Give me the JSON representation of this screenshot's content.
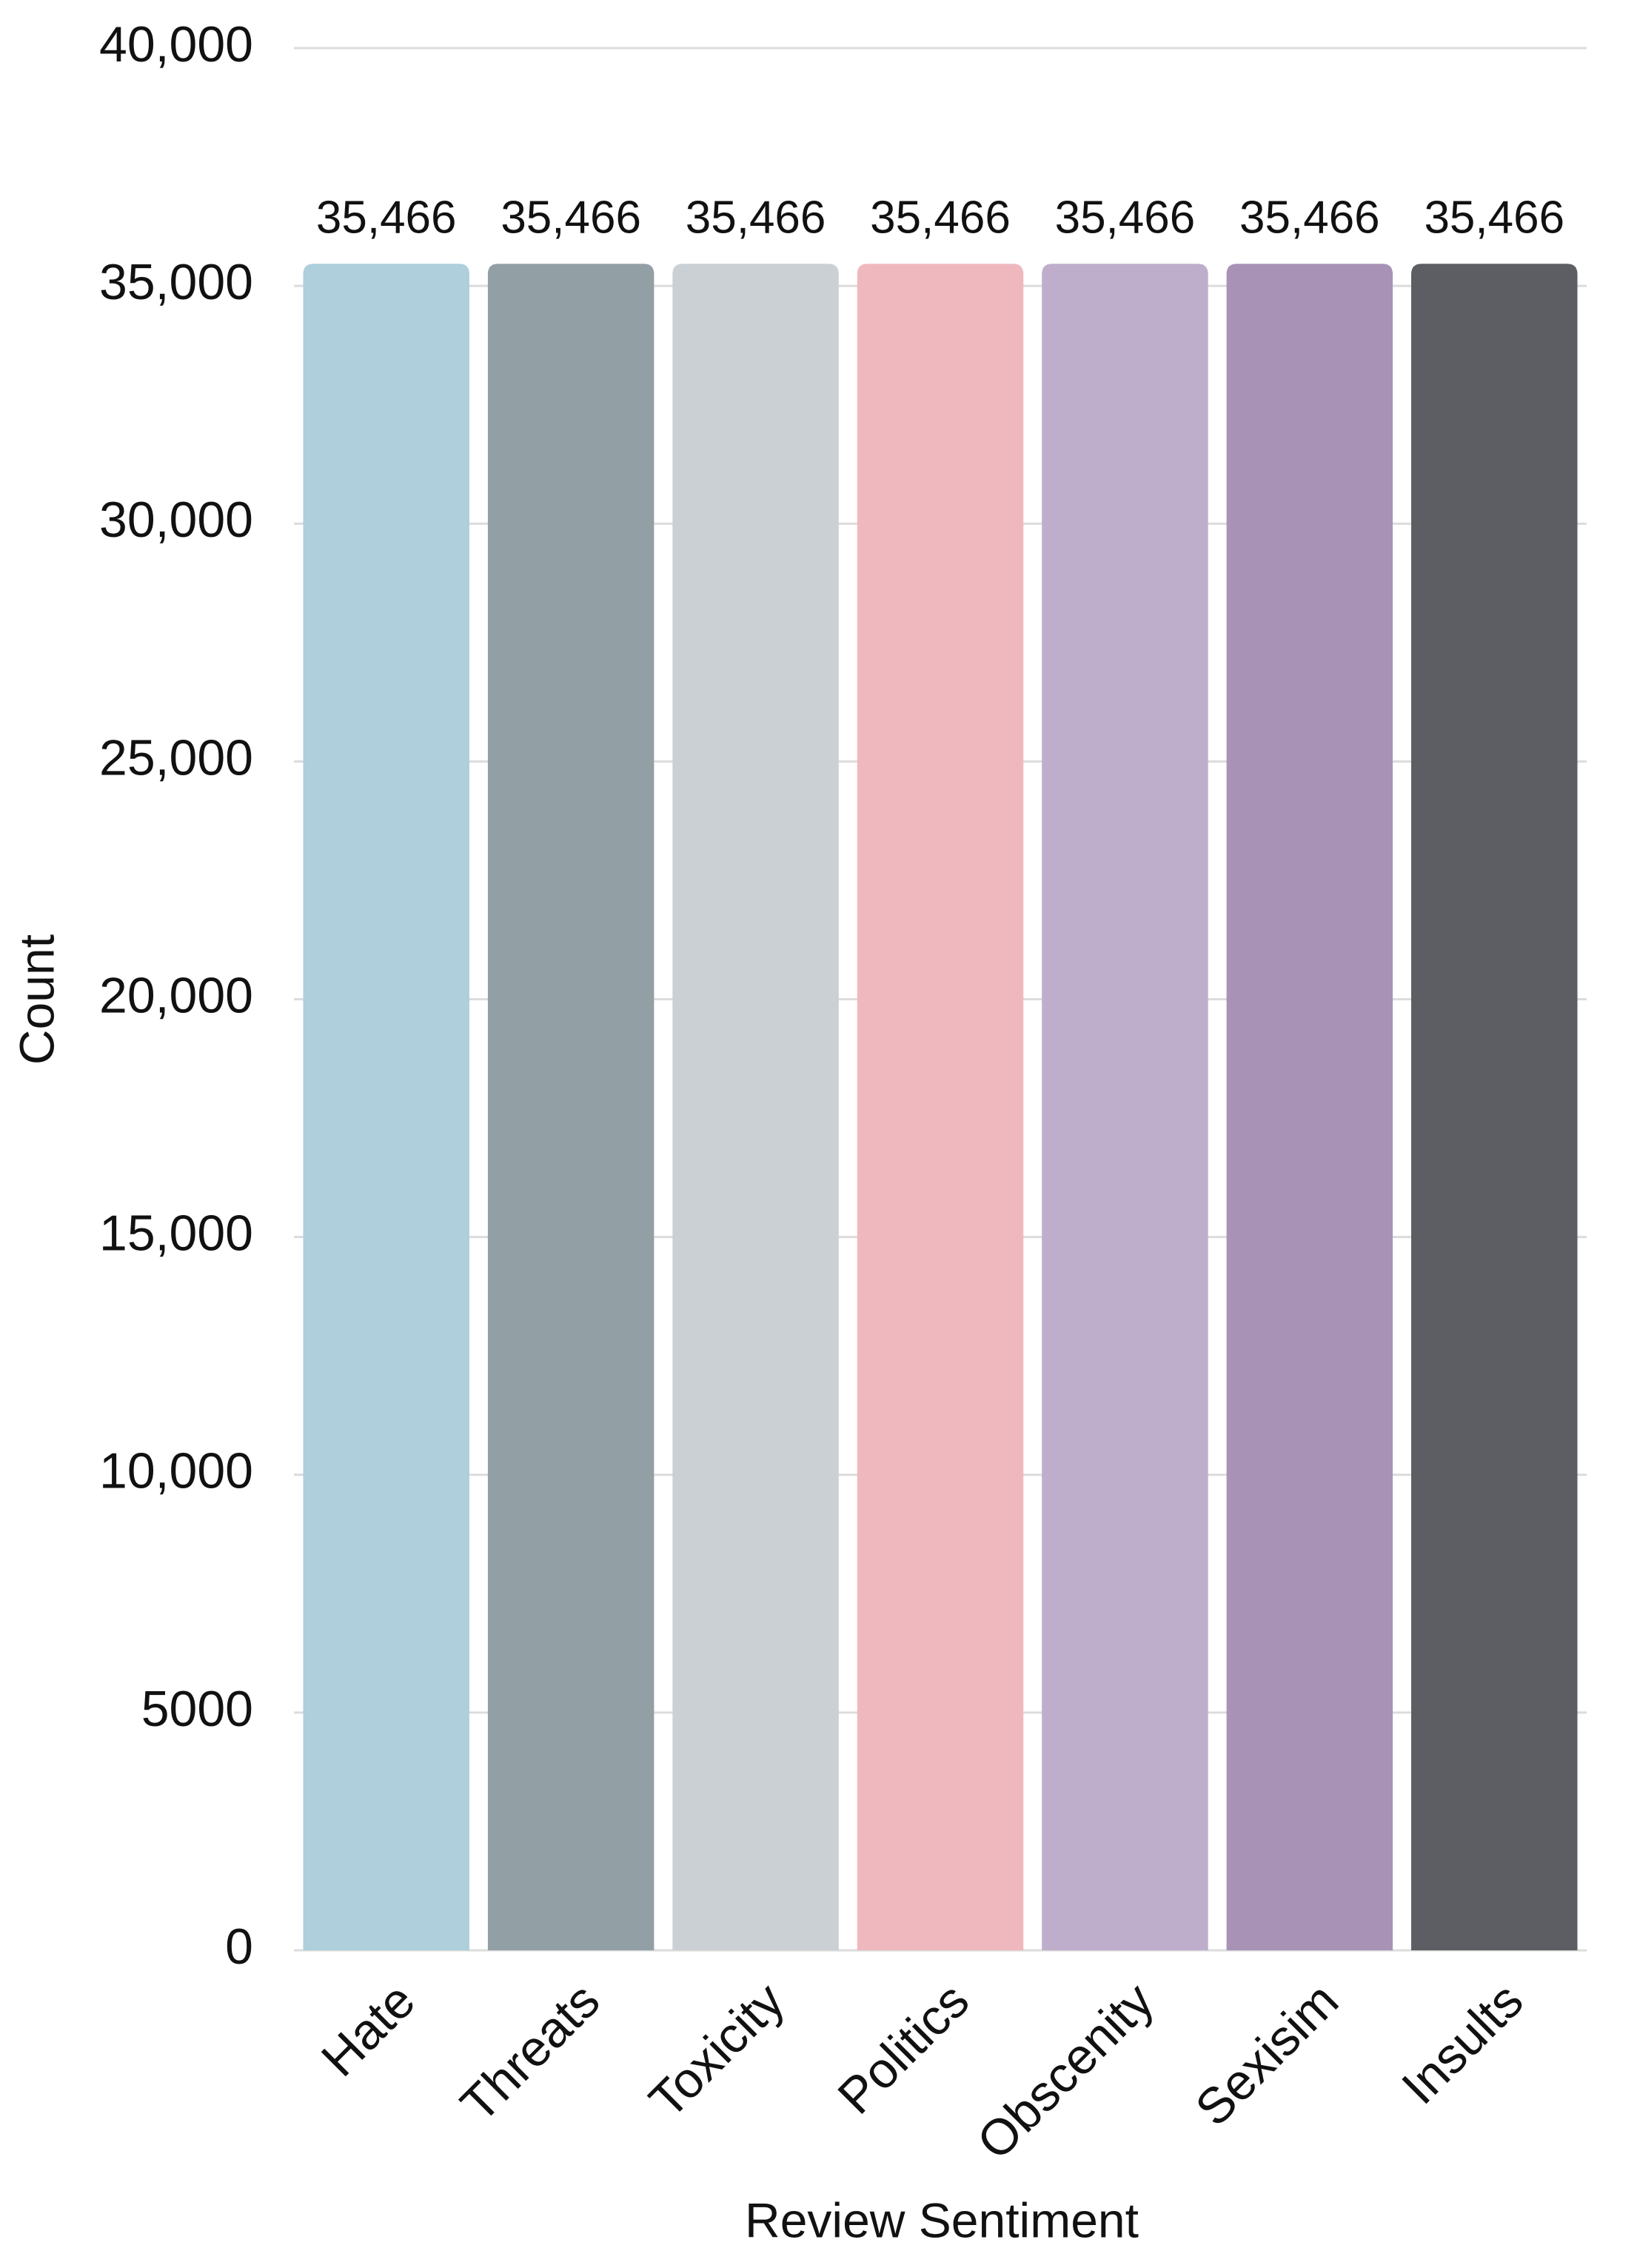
{
  "chart_data": {
    "type": "bar",
    "x_label": "Review Sentiment",
    "y_label": "Count",
    "categories": [
      "Hate",
      "Threats",
      "Toxicity",
      "Politics",
      "Obscenity",
      "Sexisim",
      "Insults"
    ],
    "values": [
      35466,
      35466,
      35466,
      35466,
      35466,
      35466,
      35466
    ],
    "value_labels": [
      "35,466",
      "35,466",
      "35,466",
      "35,466",
      "35,466",
      "35,466",
      "35,466"
    ],
    "colors": [
      "#aecfdb",
      "#92a0a5",
      "#cad0d4",
      "#efb8bf",
      "#bfaecb",
      "#a892b5",
      "#5c5e63"
    ],
    "ylim": [
      0,
      40000
    ],
    "yticks": [
      0,
      5000,
      {
        "value": 10000,
        "label": "10,000"
      },
      {
        "value": 15000,
        "label": "15,000"
      },
      {
        "value": 20000,
        "label": "20,000"
      },
      {
        "value": 25000,
        "label": "25,000"
      },
      {
        "value": 30000,
        "label": "30,000"
      },
      {
        "value": 35000,
        "label": "35,000"
      },
      {
        "value": 40000,
        "label": "40,000"
      }
    ],
    "grid": true
  }
}
